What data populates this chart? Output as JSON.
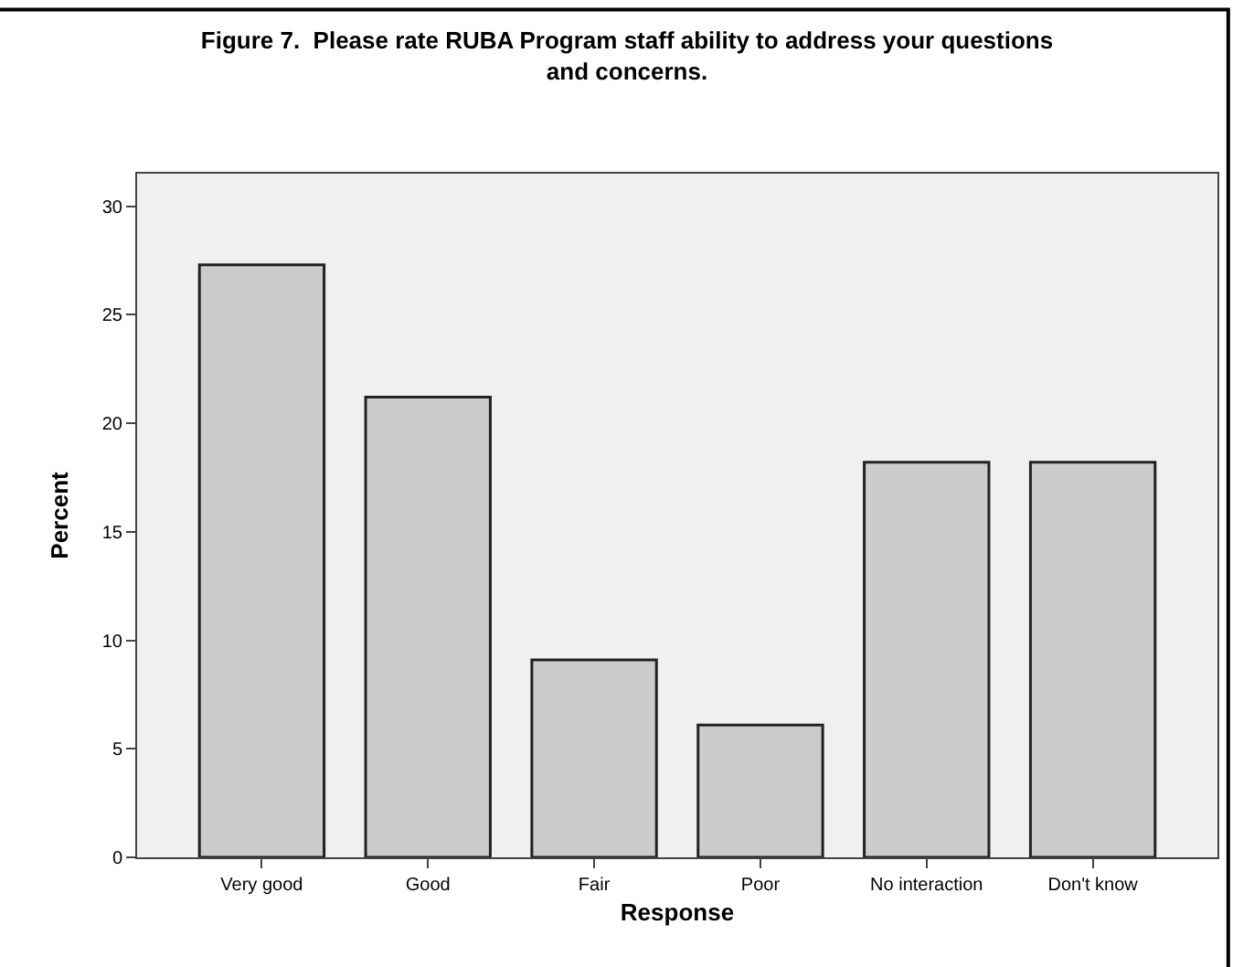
{
  "chart_data": {
    "type": "bar",
    "title": "Figure 7.  Please rate RUBA Program staff ability to address your questions\nand concerns.",
    "xlabel": "Response",
    "ylabel": "Percent",
    "categories": [
      "Very good",
      "Good",
      "Fair",
      "Poor",
      "No interaction",
      "Don't know"
    ],
    "values": [
      27.3,
      21.2,
      9.1,
      6.1,
      18.2,
      18.2
    ],
    "color": "#cccccc",
    "ylim": [
      0,
      31.5
    ],
    "yticks": [
      0,
      5,
      10,
      15,
      20,
      25,
      30
    ],
    "grid": false
  }
}
